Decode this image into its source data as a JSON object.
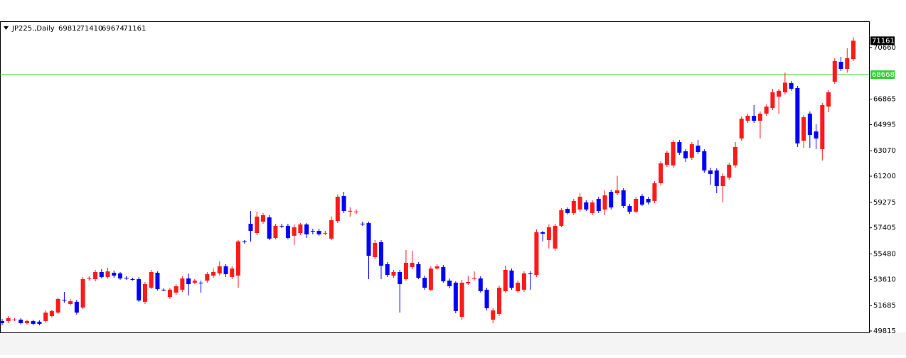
{
  "chart_data": {
    "type": "candlestick",
    "symbol": "JP225.,Daily",
    "candles": [
      [
        50550,
        50700,
        50230,
        50390
      ],
      [
        50550,
        50910,
        50390,
        50760
      ],
      [
        50650,
        50760,
        50550,
        50660
      ],
      [
        50650,
        50760,
        50290,
        50390
      ],
      [
        50390,
        50650,
        50290,
        50550
      ],
      [
        50550,
        50650,
        50230,
        50340
      ],
      [
        50500,
        50600,
        50230,
        50340
      ],
      [
        50550,
        51330,
        50440,
        51170
      ],
      [
        50910,
        51380,
        50810,
        51280
      ],
      [
        51170,
        52270,
        51070,
        52170
      ],
      [
        52110,
        52690,
        51900,
        52060
      ],
      [
        51800,
        52170,
        51700,
        52010
      ],
      [
        51960,
        52110,
        51020,
        51170
      ],
      [
        51540,
        53790,
        51430,
        53630
      ],
      [
        53680,
        53840,
        53520,
        53690
      ],
      [
        53630,
        54310,
        53470,
        54150
      ],
      [
        54150,
        54360,
        53680,
        53790
      ],
      [
        53790,
        54460,
        53680,
        54200
      ],
      [
        54100,
        54260,
        53730,
        53890
      ],
      [
        54050,
        54150,
        53580,
        53680
      ],
      [
        53730,
        53840,
        53580,
        53680
      ],
      [
        53630,
        53730,
        53520,
        53620
      ],
      [
        53630,
        53790,
        51960,
        52060
      ],
      [
        51960,
        53420,
        51800,
        53260
      ],
      [
        53000,
        54310,
        52900,
        54150
      ],
      [
        54100,
        54200,
        52790,
        52900
      ],
      [
        52850,
        52950,
        52740,
        52840
      ],
      [
        52320,
        53000,
        52170,
        52850
      ],
      [
        52640,
        53260,
        52480,
        53110
      ],
      [
        52850,
        53840,
        52690,
        53680
      ],
      [
        53680,
        54050,
        52430,
        53260
      ],
      [
        53370,
        53630,
        53260,
        53520
      ],
      [
        53370,
        53520,
        52640,
        53360
      ],
      [
        53520,
        54150,
        53370,
        54000
      ],
      [
        53890,
        54410,
        53730,
        54150
      ],
      [
        54050,
        54930,
        53890,
        54570
      ],
      [
        54570,
        54730,
        53790,
        54000
      ],
      [
        53790,
        54570,
        53630,
        54410
      ],
      [
        53890,
        56500,
        53000,
        56400
      ],
      [
        56400,
        56500,
        56240,
        56390
      ],
      [
        57700,
        58640,
        56400,
        57180
      ],
      [
        57020,
        58590,
        56870,
        58230
      ],
      [
        57860,
        58490,
        57700,
        58330
      ],
      [
        58170,
        58330,
        56500,
        56610
      ],
      [
        56660,
        57700,
        56550,
        57550
      ],
      [
        57550,
        57700,
        57390,
        57540
      ],
      [
        57550,
        57700,
        56550,
        56660
      ],
      [
        56820,
        57650,
        56140,
        57440
      ],
      [
        57020,
        57760,
        56870,
        57650
      ],
      [
        57650,
        57760,
        56660,
        56920
      ],
      [
        57180,
        57340,
        56920,
        57170
      ],
      [
        57180,
        57340,
        56820,
        56920
      ],
      [
        57020,
        57180,
        56870,
        57030
      ],
      [
        56610,
        58230,
        56500,
        57970
      ],
      [
        57910,
        59850,
        57760,
        59690
      ],
      [
        59740,
        60050,
        58490,
        58640
      ],
      [
        58640,
        58900,
        58230,
        58650
      ],
      [
        58590,
        58750,
        58430,
        58600
      ],
      [
        57710,
        57860,
        57550,
        57700
      ],
      [
        57760,
        57860,
        53630,
        55350
      ],
      [
        55250,
        56500,
        55090,
        56290
      ],
      [
        56350,
        56500,
        53630,
        54620
      ],
      [
        54730,
        54880,
        53790,
        53940
      ],
      [
        53890,
        54310,
        53730,
        54150
      ],
      [
        54150,
        54310,
        51170,
        53260
      ],
      [
        53630,
        55770,
        53520,
        54830
      ],
      [
        54520,
        55720,
        54360,
        54830
      ],
      [
        54730,
        54880,
        53630,
        53730
      ],
      [
        53730,
        53890,
        52850,
        53000
      ],
      [
        52850,
        54570,
        52740,
        54410
      ],
      [
        54410,
        54730,
        54310,
        54570
      ],
      [
        54520,
        54670,
        53370,
        53470
      ],
      [
        53520,
        53680,
        52950,
        53110
      ],
      [
        53370,
        53470,
        51120,
        51280
      ],
      [
        50860,
        53580,
        50650,
        53370
      ],
      [
        53320,
        53890,
        53210,
        53420
      ],
      [
        53680,
        54200,
        53520,
        53690
      ],
      [
        53680,
        53840,
        52640,
        52740
      ],
      [
        52850,
        53000,
        51330,
        51490
      ],
      [
        50650,
        51490,
        50390,
        51330
      ],
      [
        51070,
        53160,
        50910,
        53000
      ],
      [
        52740,
        54620,
        52640,
        54310
      ],
      [
        54260,
        54410,
        52850,
        53000
      ],
      [
        52740,
        53520,
        52640,
        53370
      ],
      [
        52850,
        54200,
        52690,
        54050
      ],
      [
        54050,
        54200,
        52850,
        54040
      ],
      [
        53940,
        57290,
        53790,
        57080
      ],
      [
        57080,
        57180,
        56400,
        56970
      ],
      [
        56500,
        57650,
        55880,
        57440
      ],
      [
        55880,
        57700,
        55720,
        57550
      ],
      [
        57550,
        58850,
        57440,
        58700
      ],
      [
        58800,
        58900,
        58380,
        58490
      ],
      [
        58490,
        59530,
        58330,
        59380
      ],
      [
        58750,
        59950,
        58590,
        59690
      ],
      [
        59270,
        59430,
        58640,
        58750
      ],
      [
        58490,
        59430,
        58330,
        59270
      ],
      [
        59530,
        59690,
        58490,
        58640
      ],
      [
        58750,
        60160,
        58330,
        59790
      ],
      [
        60050,
        60210,
        58750,
        58900
      ],
      [
        59950,
        61230,
        59790,
        60160
      ],
      [
        60160,
        60320,
        58850,
        59010
      ],
      [
        59010,
        59160,
        58430,
        58590
      ],
      [
        58590,
        59690,
        58490,
        59530
      ],
      [
        59740,
        59900,
        59010,
        59110
      ],
      [
        59530,
        59690,
        59110,
        59270
      ],
      [
        59380,
        60840,
        59220,
        60680
      ],
      [
        60680,
        62300,
        60520,
        62140
      ],
      [
        62040,
        63080,
        61880,
        62930
      ],
      [
        61990,
        63870,
        61830,
        63710
      ],
      [
        63710,
        63870,
        62770,
        62930
      ],
      [
        63030,
        63190,
        62250,
        62510
      ],
      [
        62560,
        63710,
        62400,
        63550
      ],
      [
        63450,
        63870,
        62820,
        62980
      ],
      [
        63030,
        63190,
        61460,
        61620
      ],
      [
        61620,
        61830,
        60580,
        61360
      ],
      [
        61620,
        61780,
        59950,
        60470
      ],
      [
        60470,
        61410,
        59270,
        61200
      ],
      [
        61100,
        62200,
        60940,
        62040
      ],
      [
        61990,
        63710,
        61830,
        63350
      ],
      [
        63970,
        65590,
        63810,
        65430
      ],
      [
        65280,
        65800,
        65120,
        65640
      ],
      [
        65640,
        66430,
        65120,
        65280
      ],
      [
        65280,
        65960,
        63970,
        65800
      ],
      [
        65800,
        66480,
        65640,
        66320
      ],
      [
        66220,
        67630,
        66060,
        67370
      ],
      [
        67050,
        67630,
        65800,
        67480
      ],
      [
        67370,
        68810,
        67210,
        68080
      ],
      [
        68050,
        68200,
        67480,
        67630
      ],
      [
        67680,
        67840,
        63350,
        63610
      ],
      [
        63810,
        65700,
        63290,
        65540
      ],
      [
        65800,
        65960,
        63290,
        64230
      ],
      [
        64490,
        65020,
        63190,
        63970
      ],
      [
        63190,
        66580,
        62350,
        66430
      ],
      [
        66320,
        67530,
        65910,
        67370
      ],
      [
        68150,
        69880,
        67990,
        69670
      ],
      [
        69610,
        69980,
        68930,
        69090
      ],
      [
        69090,
        70610,
        68810,
        69880
      ],
      [
        69812,
        71410,
        69674,
        71161
      ]
    ],
    "up_color": "#ff1a1a",
    "down_color": "#0000ff",
    "level": 68668,
    "level_color": "#33cc33",
    "ylim": [
      49710,
      72590
    ],
    "yticks": [
      49815,
      51685,
      53610,
      55480,
      57405,
      59275,
      61200,
      63070,
      64995,
      66865,
      70660
    ]
  }
}
